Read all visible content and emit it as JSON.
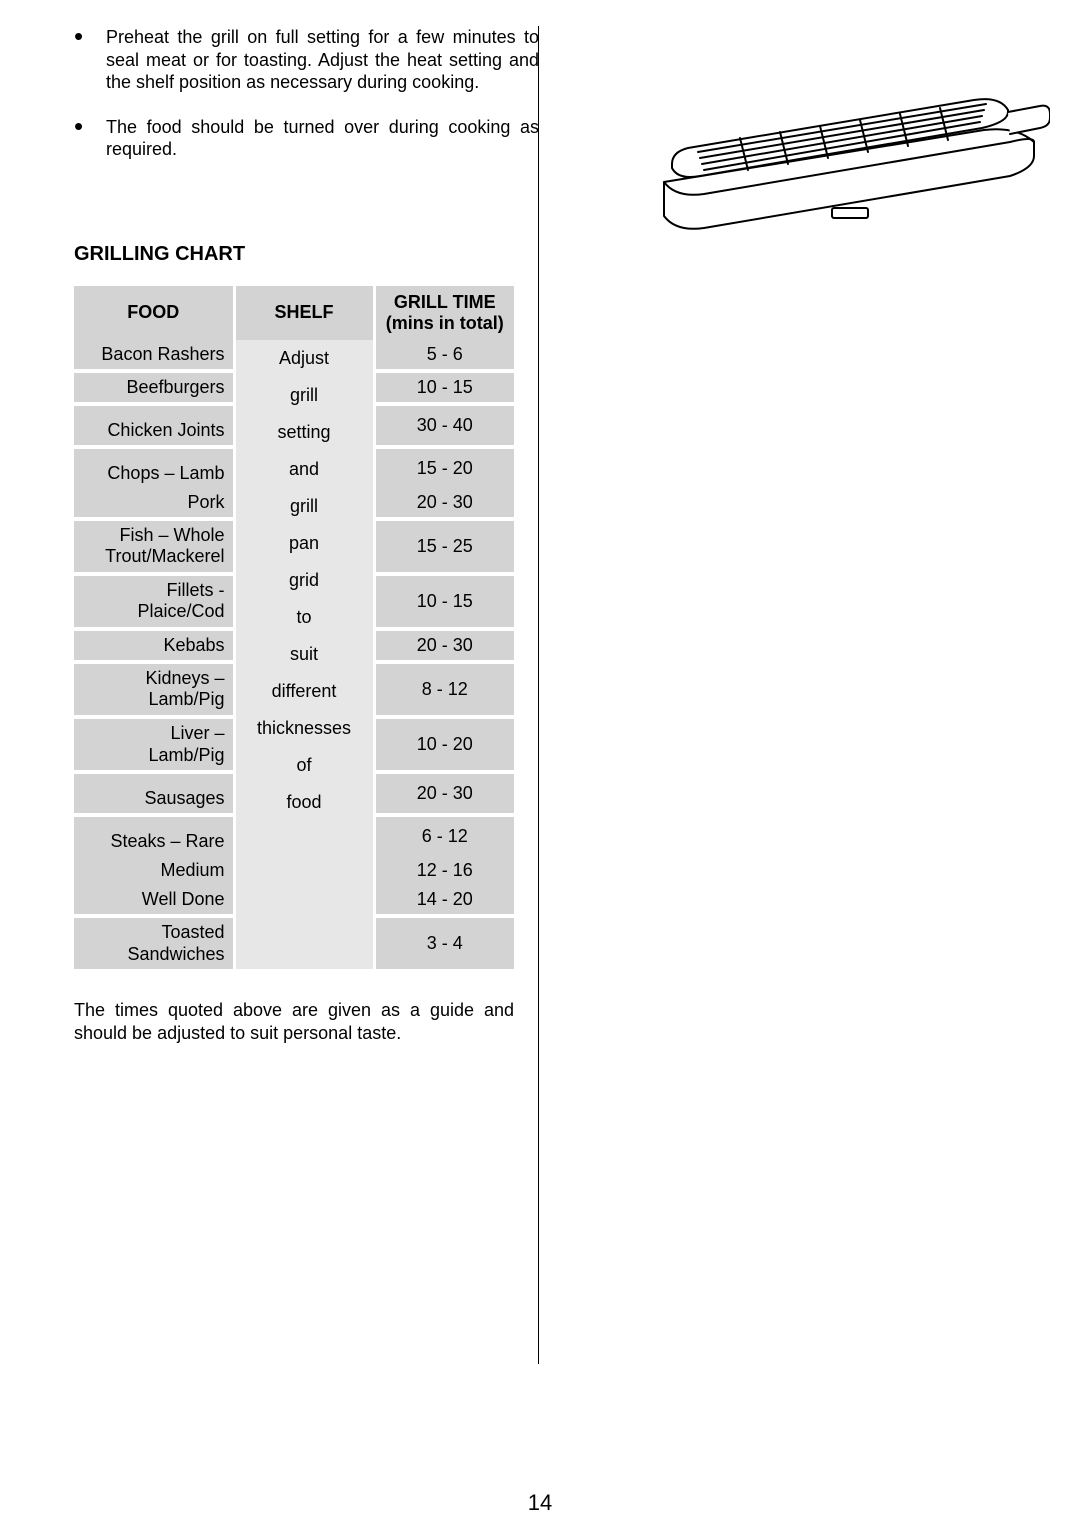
{
  "bullets": [
    "Preheat the grill on full setting for a few minutes to seal meat or for toasting.  Adjust the heat setting and the shelf position as necessary during cooking.",
    "The food should be turned over during cooking as required."
  ],
  "chart_title": "GRILLING CHART",
  "table": {
    "headers": {
      "food": "FOOD",
      "shelf": "SHELF",
      "time": "GRILL TIME\n(mins in total)"
    },
    "food_rows": [
      {
        "label": "Bacon Rashers",
        "time": "5 - 6",
        "spacer_after": true
      },
      {
        "label": "Beefburgers",
        "time": "10 - 15",
        "spacer_after": true
      },
      {
        "label": "Chicken Joints",
        "time": "30 - 40",
        "spacer_after": true,
        "pad_top": true
      },
      {
        "label": "Chops – Lamb",
        "time": "15 - 20",
        "spacer_after": false,
        "pad_top": true
      },
      {
        "label": "Pork",
        "time": "20 - 30",
        "spacer_after": true
      },
      {
        "label": "Fish – Whole\nTrout/Mackerel",
        "time": "15 - 25",
        "spacer_after": true
      },
      {
        "label": "Fillets -\nPlaice/Cod",
        "time": "10 - 15",
        "spacer_after": true
      },
      {
        "label": "Kebabs",
        "time": "20 - 30",
        "spacer_after": true
      },
      {
        "label": "Kidneys –\nLamb/Pig",
        "time": "8 - 12",
        "spacer_after": true
      },
      {
        "label": "Liver –\nLamb/Pig",
        "time": "10 - 20",
        "spacer_after": true
      },
      {
        "label": "Sausages",
        "time": "20 - 30",
        "spacer_after": true,
        "pad_top": true
      },
      {
        "label": "Steaks – Rare",
        "time": "6 - 12",
        "spacer_after": false,
        "pad_top": true
      },
      {
        "label": "Medium",
        "time": "12 - 16",
        "spacer_after": false
      },
      {
        "label": "Well Done",
        "time": "14 - 20",
        "spacer_after": true
      },
      {
        "label": "Toasted\nSandwiches",
        "time": "3 - 4",
        "spacer_after": false
      }
    ],
    "shelf_words": [
      "Adjust",
      "grill",
      "setting",
      "and",
      "grill",
      "pan",
      "grid",
      "to",
      "suit",
      "different",
      "thicknesses",
      "of",
      "food"
    ],
    "colors": {
      "header_bg": "#d3d3d3",
      "food_bg": "#d3d3d3",
      "shelf_bg": "#e7e7e7",
      "time_bg": "#d3d3d3",
      "spacer_bg": "#ffffff",
      "col_gap": "#ffffff"
    }
  },
  "note": "The times quoted above are given as a guide and should be adjusted to suit personal taste.",
  "page_number": "14",
  "illustration": {
    "type": "grill-pan-line-drawing",
    "stroke": "#000000",
    "fill": "#ffffff"
  }
}
